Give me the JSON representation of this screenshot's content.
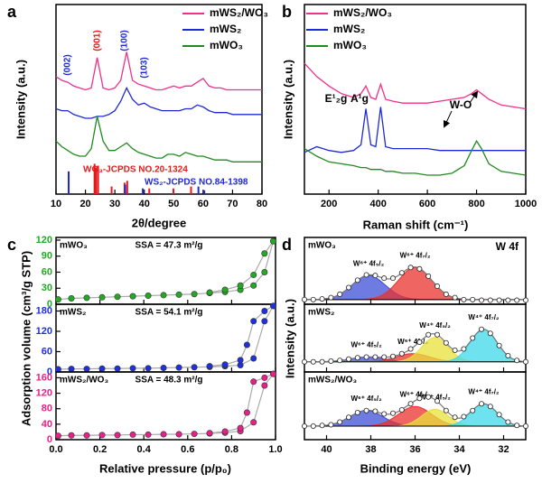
{
  "chart_data": [
    {
      "type": "line",
      "label": "a",
      "xlabel": "2θ/degree",
      "ylabel": "Intensity (a.u.)",
      "legend": "upper right",
      "xlim": [
        10,
        80
      ],
      "xticks": [
        10,
        20,
        30,
        40,
        50,
        60,
        70,
        80
      ],
      "ylim": [
        0,
        100
      ],
      "x": [
        10,
        12,
        14,
        16,
        18,
        20,
        22,
        24,
        26,
        28,
        30,
        32,
        34,
        36,
        38,
        40,
        42,
        44,
        46,
        48,
        50,
        52,
        54,
        56,
        58,
        60,
        62,
        64,
        66,
        68,
        70,
        72,
        74,
        76,
        78,
        80
      ],
      "series": [
        {
          "name": "mWS₂/WO₃",
          "color": "#f0308a",
          "values": [
            62,
            60,
            59,
            57,
            56,
            55,
            56,
            72,
            56,
            55,
            56,
            60,
            75,
            60,
            58,
            57,
            56,
            55,
            55,
            56,
            57,
            56,
            57,
            57,
            59,
            61,
            57,
            56,
            56,
            55,
            55,
            55,
            55,
            55,
            55,
            55
          ]
        },
        {
          "name": "mWS₂",
          "color": "#1f2ad6",
          "values": [
            45,
            44,
            44,
            42,
            41,
            40,
            40,
            41,
            41,
            42,
            44,
            49,
            56,
            50,
            47,
            48,
            46,
            45,
            44,
            44,
            44,
            44,
            45,
            45,
            47,
            46,
            44,
            43,
            43,
            43,
            42,
            42,
            42,
            42,
            42,
            42
          ]
        },
        {
          "name": "mWO₃",
          "color": "#1f8a1f",
          "values": [
            28,
            25,
            23,
            21,
            20,
            20,
            24,
            41,
            28,
            23,
            23,
            25,
            27,
            24,
            22,
            21,
            20,
            19,
            19,
            21,
            21,
            20,
            22,
            21,
            20,
            20,
            19,
            18,
            18,
            18,
            17,
            17,
            17,
            17,
            17,
            17
          ]
        }
      ],
      "sticks": [
        {
          "name": "WO₃-JCPDS NO.20-1324",
          "color": "#e8191a",
          "x": [
            23.1,
            23.6,
            24.3,
            28.9,
            33.3,
            34.2,
            41.7,
            49.9,
            55.9
          ],
          "values": [
            16,
            14,
            15,
            4,
            6,
            7,
            3,
            3,
            4
          ]
        },
        {
          "name": "WS₂-JCPDS NO.84-1398",
          "color": "#1f2ad6",
          "x": [
            14.3,
            33.5,
            39.5,
            58.4,
            60.4
          ],
          "values": [
            12,
            5,
            3,
            4,
            2
          ]
        }
      ],
      "annotations": [
        {
          "text": "(002)",
          "color": "#1f2ad6"
        },
        {
          "text": "(001)",
          "color": "#e8191a"
        },
        {
          "text": "(100)",
          "color": "#1f2ad6"
        },
        {
          "text": "(103)",
          "color": "#1f2ad6"
        }
      ]
    },
    {
      "type": "line",
      "label": "b",
      "xlabel": "Raman shift (cm⁻¹)",
      "ylabel": "Intensity (a.u.)",
      "legend": "upper left",
      "xlim": [
        100,
        1000
      ],
      "xticks": [
        200,
        400,
        600,
        800,
        1000
      ],
      "ylim": [
        0,
        100
      ],
      "x": [
        100,
        150,
        200,
        250,
        300,
        330,
        350,
        370,
        390,
        410,
        430,
        460,
        500,
        550,
        600,
        650,
        700,
        750,
        780,
        800,
        820,
        850,
        900,
        950,
        1000
      ],
      "series": [
        {
          "name": "mWS₂/WO₃",
          "color": "#f0308a",
          "values": [
            69,
            62,
            57,
            53,
            51,
            53,
            57,
            51,
            50,
            58,
            50,
            49,
            48,
            48,
            48,
            49,
            50,
            51,
            53,
            55,
            53,
            50,
            47,
            46,
            45
          ]
        },
        {
          "name": "mWS₂",
          "color": "#1f2ad6",
          "values": [
            22,
            25,
            23,
            22,
            23,
            26,
            45,
            26,
            25,
            46,
            25,
            24,
            24,
            24,
            24,
            23,
            23,
            23,
            23,
            23,
            23,
            23,
            23,
            23,
            23
          ]
        },
        {
          "name": "mWO₃",
          "color": "#1f8a1f",
          "values": [
            24,
            20,
            17,
            16,
            15,
            14,
            14,
            13,
            13,
            13,
            12,
            12,
            11,
            11,
            10,
            10,
            11,
            15,
            23,
            28,
            24,
            16,
            12,
            11,
            10
          ]
        }
      ],
      "annotations": [
        {
          "text": "E¹₂g",
          "color": "#000000"
        },
        {
          "text": "A¹g",
          "color": "#000000"
        },
        {
          "text": "W-O",
          "color": "#000000"
        }
      ]
    },
    {
      "type": "scatter",
      "label": "c",
      "sample": "mWO₃",
      "annotation": "SSA = 47.3 m²/g",
      "ylabel": "Adsorption volume (cm³/g STP)",
      "line_color": "#aaaaaa",
      "xlim": [
        0,
        1
      ],
      "xticks": [
        0,
        0.2,
        0.4,
        0.6,
        0.8,
        1
      ],
      "ylim": [
        0,
        125
      ],
      "yticks": [
        0,
        30,
        60,
        90,
        120
      ],
      "series": [
        {
          "color": "#22aa22",
          "x": [
            0.01,
            0.07,
            0.14,
            0.21,
            0.28,
            0.35,
            0.42,
            0.49,
            0.56,
            0.63,
            0.7,
            0.77,
            0.84,
            0.9,
            0.95,
            0.99
          ],
          "values": [
            9,
            11,
            12,
            13,
            14,
            15,
            16,
            17,
            18,
            19,
            21,
            23,
            27,
            35,
            60,
            118
          ]
        },
        {
          "color": "#22aa22",
          "x": [
            0.99,
            0.95,
            0.9,
            0.84,
            0.77,
            0.7
          ],
          "values": [
            118,
            95,
            55,
            35,
            27,
            22
          ]
        }
      ]
    },
    {
      "type": "scatter",
      "sample": "mWS₂",
      "annotation": "SSA = 54.1 m²/g",
      "line_color": "#aaaaaa",
      "xlim": [
        0,
        1
      ],
      "xticks": [
        0,
        0.2,
        0.4,
        0.6,
        0.8,
        1
      ],
      "ylim": [
        0,
        200
      ],
      "yticks": [
        0,
        60,
        120,
        180
      ],
      "series": [
        {
          "color": "#2030e0",
          "x": [
            0.01,
            0.07,
            0.14,
            0.21,
            0.28,
            0.35,
            0.42,
            0.49,
            0.56,
            0.63,
            0.7,
            0.77,
            0.84,
            0.9,
            0.95,
            0.99
          ],
          "values": [
            8,
            9,
            9,
            10,
            10,
            11,
            11,
            12,
            13,
            14,
            15,
            17,
            20,
            40,
            150,
            195
          ]
        },
        {
          "color": "#2030e0",
          "x": [
            0.99,
            0.95,
            0.9,
            0.87,
            0.84,
            0.77,
            0.7
          ],
          "values": [
            195,
            180,
            150,
            80,
            35,
            22,
            17
          ]
        }
      ]
    },
    {
      "type": "scatter",
      "sample": "mWS₂/WO₃",
      "annotation": "SSA = 48.3 m²/g",
      "xlabel": "Relative pressure (p/p₀)",
      "line_color": "#aaaaaa",
      "xlim": [
        0,
        1
      ],
      "xticks": [
        {
          "value": 0,
          "label": "0.0"
        },
        0.2,
        0.4,
        0.6,
        0.8,
        {
          "value": 1,
          "label": "1.0"
        }
      ],
      "ylim": [
        0,
        175
      ],
      "yticks": [
        0,
        40,
        80,
        120,
        160
      ],
      "series": [
        {
          "color": "#e8208a",
          "x": [
            0.01,
            0.07,
            0.14,
            0.21,
            0.28,
            0.35,
            0.42,
            0.49,
            0.56,
            0.63,
            0.7,
            0.77,
            0.84,
            0.9,
            0.95,
            0.99
          ],
          "values": [
            10,
            11,
            11,
            12,
            12,
            13,
            13,
            14,
            14,
            15,
            16,
            18,
            22,
            45,
            140,
            170
          ]
        },
        {
          "color": "#e8208a",
          "x": [
            0.99,
            0.95,
            0.9,
            0.87,
            0.84,
            0.77,
            0.7
          ],
          "values": [
            170,
            160,
            150,
            70,
            30,
            21,
            17
          ]
        }
      ]
    },
    {
      "type": "xps",
      "label": "d",
      "title": "W 4f",
      "sample": "mWO₃",
      "ylabel": "Intensity (a.u.)",
      "xlim": [
        41,
        31
      ],
      "xticks": [
        40,
        38,
        36,
        34,
        32
      ],
      "ylim": [
        0,
        100
      ],
      "baseline": 7,
      "x": [
        41,
        40.6,
        40.2,
        39.8,
        39.4,
        39,
        38.6,
        38.2,
        37.8,
        37.4,
        37,
        36.6,
        36.2,
        35.8,
        35.4,
        35,
        34.6,
        34.2,
        33.8,
        33.4,
        33,
        32.6,
        32.2,
        31.8,
        31.4,
        31
      ],
      "values": [
        7,
        7,
        8,
        10,
        15,
        25,
        36,
        44,
        43,
        39,
        39,
        47,
        55,
        53,
        42,
        27,
        15,
        10,
        7,
        7,
        6,
        6,
        6,
        6,
        6,
        6
      ],
      "components": [
        {
          "name": "W⁶⁺ 4f₅/₂",
          "color": "#3d4fd6",
          "center": 38.1,
          "height": 36,
          "width": 0.75
        },
        {
          "name": "W⁶⁺ 4f₇/₂",
          "color": "#e8322d",
          "center": 36.0,
          "height": 48,
          "width": 0.75
        }
      ]
    },
    {
      "type": "xps",
      "sample": "mWS₂",
      "xlim": [
        41,
        31
      ],
      "xticks": [
        40,
        38,
        36,
        34,
        32
      ],
      "ylim": [
        0,
        100
      ],
      "baseline": 15,
      "x": [
        41,
        40.6,
        40.2,
        39.8,
        39.4,
        39,
        38.6,
        38.2,
        37.8,
        37.4,
        37,
        36.6,
        36.2,
        35.8,
        35.4,
        35,
        34.6,
        34.2,
        33.8,
        33.4,
        33,
        32.6,
        32.2,
        31.8,
        31.4,
        31
      ],
      "values": [
        15,
        15,
        15,
        16,
        17,
        19,
        21,
        22,
        22,
        22,
        23,
        27,
        34,
        44,
        55,
        55,
        43,
        32,
        34,
        50,
        63,
        57,
        39,
        24,
        17,
        15
      ],
      "components": [
        {
          "name": "W⁶⁺ 4f₅/₂",
          "color": "#3d4fd6",
          "center": 38.2,
          "height": 7,
          "width": 0.75
        },
        {
          "name": "W⁶⁺ 4f₇/₂",
          "color": "#e8322d",
          "center": 36.1,
          "height": 12,
          "width": 0.75
        },
        {
          "name": "W⁴⁺ 4f₅/₂",
          "color": "#e8e03a",
          "center": 35.1,
          "height": 36,
          "width": 0.6
        },
        {
          "name": "W⁴⁺ 4f₇/₂",
          "color": "#3ed8e8",
          "center": 32.9,
          "height": 48,
          "width": 0.6
        }
      ]
    },
    {
      "type": "xps",
      "sample": "mWS₂/WO₃",
      "xlabel": "Binding energy (eV)",
      "xlim": [
        41,
        31
      ],
      "xticks": [
        40,
        38,
        36,
        34,
        32
      ],
      "ylim": [
        0,
        100
      ],
      "baseline": 20,
      "x": [
        41,
        40.6,
        40.2,
        39.8,
        39.4,
        39,
        38.6,
        38.2,
        37.8,
        37.4,
        37,
        36.6,
        36.2,
        35.8,
        35.4,
        35,
        34.6,
        34.2,
        33.8,
        33.4,
        33,
        32.6,
        32.2,
        31.8,
        31.4,
        31
      ],
      "values": [
        20,
        20,
        21,
        22,
        26,
        33,
        40,
        43,
        42,
        38,
        39,
        44,
        53,
        61,
        63,
        57,
        43,
        33,
        34,
        43,
        53,
        49,
        37,
        26,
        21,
        20
      ],
      "components": [
        {
          "name": "W⁶⁺ 4f₅/₂",
          "color": "#3d4fd6",
          "center": 38.2,
          "height": 23,
          "width": 0.75
        },
        {
          "name": "W⁶⁺ 4f₇/₂",
          "color": "#e8322d",
          "center": 36.0,
          "height": 29,
          "width": 0.75
        },
        {
          "name": "W⁴⁺ 4f₅/₂",
          "color": "#e8e03a",
          "center": 35.1,
          "height": 25,
          "width": 0.6
        },
        {
          "name": "W⁴⁺ 4f₇/₂",
          "color": "#3ed8e8",
          "center": 32.9,
          "height": 33,
          "width": 0.6
        }
      ]
    }
  ]
}
